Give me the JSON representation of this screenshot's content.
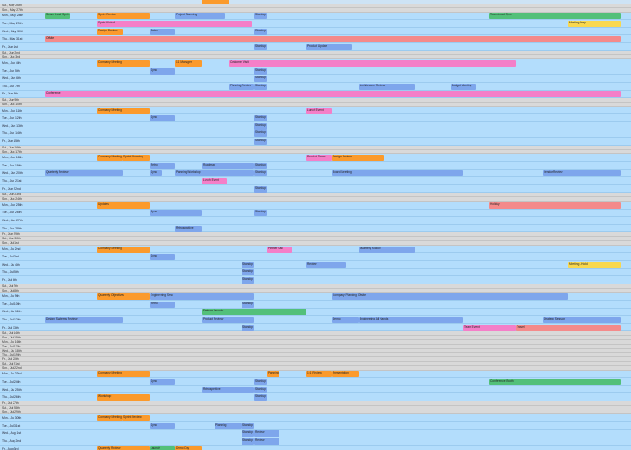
{
  "days": [
    {
      "label": "Sat., May 26th",
      "grey": true
    },
    {
      "label": "Sun., May 27th",
      "grey": true
    },
    {
      "label": "Mon., May 28th",
      "grey": false
    },
    {
      "label": "Tue., May 29th",
      "grey": false
    },
    {
      "label": "Wed., May 30th",
      "grey": false
    },
    {
      "label": "Thu., May 31st",
      "grey": false
    },
    {
      "label": "Fri., Jun 1st",
      "grey": false
    },
    {
      "label": "Sat., Jun 2nd",
      "grey": true
    },
    {
      "label": "Sun., Jun 3rd",
      "grey": true
    },
    {
      "label": "Mon., Jun 4th",
      "grey": false
    },
    {
      "label": "Tue., Jun 5th",
      "grey": false
    },
    {
      "label": "Wed., Jun 6th",
      "grey": false
    },
    {
      "label": "Thu., Jun 7th",
      "grey": false
    },
    {
      "label": "Fri., Jun 8th",
      "grey": false
    },
    {
      "label": "Sat., Jun 9th",
      "grey": true
    },
    {
      "label": "Sun., Jun 10th",
      "grey": true
    },
    {
      "label": "Mon., Jun 11th",
      "grey": false
    },
    {
      "label": "Tue., Jun 12th",
      "grey": false
    },
    {
      "label": "Wed., Jun 13th",
      "grey": false
    },
    {
      "label": "Thu., Jun 14th",
      "grey": false
    },
    {
      "label": "Fri., Jun 15th",
      "grey": false
    },
    {
      "label": "Sat., Jun 16th",
      "grey": true
    },
    {
      "label": "Sun., Jun 17th",
      "grey": true
    },
    {
      "label": "Mon., Jun 18th",
      "grey": false
    },
    {
      "label": "Tue., Jun 19th",
      "grey": false
    },
    {
      "label": "Wed., Jun 20th",
      "grey": false
    },
    {
      "label": "Thu., Jun 21st",
      "grey": false
    },
    {
      "label": "Fri., Jun 22nd",
      "grey": false
    },
    {
      "label": "Sat., Jun 23rd",
      "grey": true
    },
    {
      "label": "Sun., Jun 24th",
      "grey": true
    },
    {
      "label": "Mon., Jun 25th",
      "grey": false
    },
    {
      "label": "Tue., Jun 26th",
      "grey": false
    },
    {
      "label": "Wed., Jun 27th",
      "grey": false
    },
    {
      "label": "Thu., Jun 28th",
      "grey": false
    },
    {
      "label": "Fri., Jun 29th",
      "grey": true
    },
    {
      "label": "Sat., Jun 30th",
      "grey": true
    },
    {
      "label": "Sun., Jul 1st",
      "grey": true
    },
    {
      "label": "Mon., Jul 2nd",
      "grey": false
    },
    {
      "label": "Tue., Jul 3rd",
      "grey": false
    },
    {
      "label": "Wed., Jul 4th",
      "grey": false
    },
    {
      "label": "Thu., Jul 5th",
      "grey": false
    },
    {
      "label": "Fri., Jul 6th",
      "grey": false
    },
    {
      "label": "Sat., Jul 7th",
      "grey": true
    },
    {
      "label": "Sun., Jul 8th",
      "grey": true
    },
    {
      "label": "Mon., Jul 9th",
      "grey": false
    },
    {
      "label": "Tue., Jul 10th",
      "grey": false
    },
    {
      "label": "Wed., Jul 11th",
      "grey": false
    },
    {
      "label": "Thu., Jul 12th",
      "grey": false
    },
    {
      "label": "Fri., Jul 13th",
      "grey": false
    },
    {
      "label": "Sat., Jul 14th",
      "grey": true
    },
    {
      "label": "Sun., Jul 15th",
      "grey": true
    },
    {
      "label": "Mon., Jul 16th",
      "grey": true
    },
    {
      "label": "Tue., Jul 17th",
      "grey": true
    },
    {
      "label": "Wed., Jul 18th",
      "grey": true
    },
    {
      "label": "Thu., Jul 19th",
      "grey": true
    },
    {
      "label": "Fri., Jul 20th",
      "grey": true
    },
    {
      "label": "Sat., Jul 21st",
      "grey": true
    },
    {
      "label": "Sun., Jul 22nd",
      "grey": true
    },
    {
      "label": "Mon., Jul 23rd",
      "grey": false
    },
    {
      "label": "Tue., Jul 24th",
      "grey": false
    },
    {
      "label": "Wed., Jul 25th",
      "grey": false
    },
    {
      "label": "Thu., Jul 26th",
      "grey": false
    },
    {
      "label": "Fri., Jul 27th",
      "grey": true
    },
    {
      "label": "Sat., Jul 28th",
      "grey": true
    },
    {
      "label": "Sun., Jul 29th",
      "grey": true
    },
    {
      "label": "Mon., Jul 30th",
      "grey": false
    },
    {
      "label": "Tue., Jul 31st",
      "grey": false
    },
    {
      "label": "Wed., Aug 1st",
      "grey": false
    },
    {
      "label": "Thu., Aug 2nd",
      "grey": false
    },
    {
      "label": "Fri., Aug 3rd",
      "grey": false
    }
  ],
  "events": [
    {
      "day": 2,
      "c": "green",
      "x1": 50,
      "x2": 78,
      "text": "Scrum Lead Sprint"
    },
    {
      "day": 2,
      "c": "orange",
      "x1": 108,
      "x2": 166,
      "text": "Sprint Review"
    },
    {
      "day": 2,
      "c": "blue",
      "x1": 194,
      "x2": 250,
      "text": "Project Planning"
    },
    {
      "day": 2,
      "c": "blue",
      "x1": 282,
      "x2": 296,
      "text": "Standup"
    },
    {
      "day": 2,
      "c": "green",
      "x1": 543,
      "x2": 689,
      "text": "Team Lead Sync"
    },
    {
      "day": 3,
      "c": "pink",
      "x1": 108,
      "x2": 280,
      "text": "Sprint Kickoff"
    },
    {
      "day": 3,
      "c": "yellow",
      "x1": 630,
      "x2": 689,
      "text": "Meeting Prep"
    },
    {
      "day": 4,
      "c": "orange",
      "x1": 108,
      "x2": 136,
      "text": "Design Review"
    },
    {
      "day": 4,
      "c": "blue",
      "x1": 166,
      "x2": 194,
      "text": "Retro"
    },
    {
      "day": 4,
      "c": "blue",
      "x1": 282,
      "x2": 296,
      "text": "Standup"
    },
    {
      "day": 5,
      "c": "salmon",
      "x1": 50,
      "x2": 689,
      "text": "Offsite"
    },
    {
      "day": 6,
      "c": "blue",
      "x1": 282,
      "x2": 296,
      "text": "Standup"
    },
    {
      "day": 6,
      "c": "blue",
      "x1": 340,
      "x2": 390,
      "text": "Product Update"
    },
    {
      "day": 9,
      "c": "orange",
      "x1": 108,
      "x2": 166,
      "text": "Company Meeting"
    },
    {
      "day": 9,
      "c": "orange",
      "x1": 194,
      "x2": 224,
      "text": "1:1 Manager"
    },
    {
      "day": 9,
      "c": "pink",
      "x1": 254,
      "x2": 572,
      "text": "Customer Visit"
    },
    {
      "day": 10,
      "c": "blue",
      "x1": 166,
      "x2": 194,
      "text": "Sync"
    },
    {
      "day": 10,
      "c": "blue",
      "x1": 282,
      "x2": 296,
      "text": "Standup"
    },
    {
      "day": 11,
      "c": "blue",
      "x1": 282,
      "x2": 296,
      "text": "Standup"
    },
    {
      "day": 12,
      "c": "blue",
      "x1": 254,
      "x2": 282,
      "text": "Planning Review"
    },
    {
      "day": 12,
      "c": "blue",
      "x1": 282,
      "x2": 296,
      "text": "Standup"
    },
    {
      "day": 12,
      "c": "blue",
      "x1": 398,
      "x2": 460,
      "text": "Architecture Review"
    },
    {
      "day": 12,
      "c": "blue",
      "x1": 500,
      "x2": 528,
      "text": "Budget Meeting"
    },
    {
      "day": 13,
      "c": "pink",
      "x1": 50,
      "x2": 689,
      "text": "Conference"
    },
    {
      "day": 16,
      "c": "orange",
      "x1": 108,
      "x2": 166,
      "text": "Company Meeting"
    },
    {
      "day": 16,
      "c": "pink",
      "x1": 340,
      "x2": 368,
      "text": "Lunch Event"
    },
    {
      "day": 17,
      "c": "blue",
      "x1": 166,
      "x2": 194,
      "text": "Sync"
    },
    {
      "day": 17,
      "c": "blue",
      "x1": 282,
      "x2": 296,
      "text": "Standup"
    },
    {
      "day": 18,
      "c": "blue",
      "x1": 282,
      "x2": 296,
      "text": "Standup"
    },
    {
      "day": 19,
      "c": "blue",
      "x1": 282,
      "x2": 296,
      "text": "Standup"
    },
    {
      "day": 20,
      "c": "blue",
      "x1": 282,
      "x2": 296,
      "text": "Standup"
    },
    {
      "day": 23,
      "c": "orange",
      "x1": 108,
      "x2": 136,
      "text": "Company Meeting"
    },
    {
      "day": 23,
      "c": "orange",
      "x1": 136,
      "x2": 166,
      "text": "Sprint Planning"
    },
    {
      "day": 23,
      "c": "pink",
      "x1": 340,
      "x2": 368,
      "text": "Product Demo"
    },
    {
      "day": 23,
      "c": "orange",
      "x1": 368,
      "x2": 426,
      "text": "Design Review"
    },
    {
      "day": 24,
      "c": "blue",
      "x1": 166,
      "x2": 194,
      "text": "Retro"
    },
    {
      "day": 24,
      "c": "blue",
      "x1": 224,
      "x2": 282,
      "text": "Roadmap"
    },
    {
      "day": 24,
      "c": "blue",
      "x1": 282,
      "x2": 296,
      "text": "Standup"
    },
    {
      "day": 25,
      "c": "blue",
      "x1": 50,
      "x2": 136,
      "text": "Quarterly Review"
    },
    {
      "day": 25,
      "c": "blue",
      "x1": 166,
      "x2": 180,
      "text": "Sync"
    },
    {
      "day": 25,
      "c": "blue",
      "x1": 194,
      "x2": 282,
      "text": "Planning Workshop"
    },
    {
      "day": 25,
      "c": "blue",
      "x1": 282,
      "x2": 296,
      "text": "Standup"
    },
    {
      "day": 25,
      "c": "blue",
      "x1": 368,
      "x2": 514,
      "text": "Board Meeting"
    },
    {
      "day": 25,
      "c": "blue",
      "x1": 602,
      "x2": 689,
      "text": "Vendor Review"
    },
    {
      "day": 26,
      "c": "pink",
      "x1": 224,
      "x2": 252,
      "text": "Lunch Event"
    },
    {
      "day": 27,
      "c": "blue",
      "x1": 282,
      "x2": 296,
      "text": "Standup"
    },
    {
      "day": 30,
      "c": "orange",
      "x1": 108,
      "x2": 166,
      "text": "Updates"
    },
    {
      "day": 30,
      "c": "salmon",
      "x1": 543,
      "x2": 689,
      "text": "Holiday"
    },
    {
      "day": 31,
      "c": "blue",
      "x1": 166,
      "x2": 224,
      "text": "Sync"
    },
    {
      "day": 31,
      "c": "blue",
      "x1": 282,
      "x2": 296,
      "text": "Standup"
    },
    {
      "day": 33,
      "c": "blue",
      "x1": 194,
      "x2": 224,
      "text": "Retrospective"
    },
    {
      "day": 37,
      "c": "orange",
      "x1": 108,
      "x2": 166,
      "text": "Company Meeting"
    },
    {
      "day": 37,
      "c": "pink",
      "x1": 296,
      "x2": 324,
      "text": "Partner Call"
    },
    {
      "day": 37,
      "c": "blue",
      "x1": 398,
      "x2": 460,
      "text": "Quarterly Kickoff"
    },
    {
      "day": 38,
      "c": "blue",
      "x1": 166,
      "x2": 194,
      "text": "Sync"
    },
    {
      "day": 39,
      "c": "blue",
      "x1": 268,
      "x2": 282,
      "text": "Standup"
    },
    {
      "day": 39,
      "c": "blue",
      "x1": 340,
      "x2": 384,
      "text": "Review"
    },
    {
      "day": 39,
      "c": "yellow",
      "x1": 630,
      "x2": 689,
      "text": "Meeting - Hold"
    },
    {
      "day": 40,
      "c": "blue",
      "x1": 268,
      "x2": 282,
      "text": "Standup"
    },
    {
      "day": 41,
      "c": "blue",
      "x1": 268,
      "x2": 282,
      "text": "Standup"
    },
    {
      "day": 44,
      "c": "orange",
      "x1": 108,
      "x2": 166,
      "text": "Quarterly Objectives"
    },
    {
      "day": 44,
      "c": "blue",
      "x1": 166,
      "x2": 282,
      "text": "Engineering Sync"
    },
    {
      "day": 44,
      "c": "blue",
      "x1": 368,
      "x2": 630,
      "text": "Company Planning Offsite"
    },
    {
      "day": 45,
      "c": "blue",
      "x1": 166,
      "x2": 194,
      "text": "Retro"
    },
    {
      "day": 45,
      "c": "blue",
      "x1": 268,
      "x2": 282,
      "text": "Standup"
    },
    {
      "day": 46,
      "c": "green",
      "x1": 224,
      "x2": 340,
      "text": "Feature Launch"
    },
    {
      "day": 47,
      "c": "blue",
      "x1": 50,
      "x2": 136,
      "text": "Design Systems Review"
    },
    {
      "day": 47,
      "c": "blue",
      "x1": 224,
      "x2": 282,
      "text": "Product Review"
    },
    {
      "day": 47,
      "c": "blue",
      "x1": 368,
      "x2": 398,
      "text": "Demo"
    },
    {
      "day": 47,
      "c": "blue",
      "x1": 398,
      "x2": 514,
      "text": "Engineering All Hands"
    },
    {
      "day": 47,
      "c": "blue",
      "x1": 602,
      "x2": 689,
      "text": "Strategy Session"
    },
    {
      "day": 48,
      "c": "blue",
      "x1": 268,
      "x2": 282,
      "text": "Standup"
    },
    {
      "day": 48,
      "c": "pink",
      "x1": 514,
      "x2": 572,
      "text": "Team Event"
    },
    {
      "day": 48,
      "c": "salmon",
      "x1": 572,
      "x2": 689,
      "text": "Travel"
    },
    {
      "day": 58,
      "c": "orange",
      "x1": 108,
      "x2": 166,
      "text": "Company Meeting"
    },
    {
      "day": 58,
      "c": "orange",
      "x1": 296,
      "x2": 310,
      "text": "Planning"
    },
    {
      "day": 58,
      "c": "orange",
      "x1": 340,
      "x2": 368,
      "text": "1:1 Review"
    },
    {
      "day": 58,
      "c": "orange",
      "x1": 368,
      "x2": 398,
      "text": "Presentation"
    },
    {
      "day": 59,
      "c": "blue",
      "x1": 166,
      "x2": 194,
      "text": "Sync"
    },
    {
      "day": 59,
      "c": "blue",
      "x1": 282,
      "x2": 296,
      "text": "Standup"
    },
    {
      "day": 59,
      "c": "green",
      "x1": 543,
      "x2": 689,
      "text": "Conference Booth"
    },
    {
      "day": 60,
      "c": "blue",
      "x1": 224,
      "x2": 282,
      "text": "Retrospective"
    },
    {
      "day": 60,
      "c": "blue",
      "x1": 282,
      "x2": 296,
      "text": "Standup"
    },
    {
      "day": 61,
      "c": "orange",
      "x1": 108,
      "x2": 166,
      "text": "Workshop"
    },
    {
      "day": 61,
      "c": "blue",
      "x1": 282,
      "x2": 296,
      "text": "Standup"
    },
    {
      "day": 65,
      "c": "orange",
      "x1": 108,
      "x2": 136,
      "text": "Company Meeting"
    },
    {
      "day": 65,
      "c": "orange",
      "x1": 136,
      "x2": 166,
      "text": "Sprint Review"
    },
    {
      "day": 66,
      "c": "blue",
      "x1": 166,
      "x2": 194,
      "text": "Sync"
    },
    {
      "day": 66,
      "c": "blue",
      "x1": 238,
      "x2": 268,
      "text": "Planning"
    },
    {
      "day": 66,
      "c": "blue",
      "x1": 268,
      "x2": 282,
      "text": "Standup"
    },
    {
      "day": 67,
      "c": "blue",
      "x1": 268,
      "x2": 282,
      "text": "Standup"
    },
    {
      "day": 67,
      "c": "blue",
      "x1": 282,
      "x2": 310,
      "text": "Review"
    },
    {
      "day": 68,
      "c": "blue",
      "x1": 268,
      "x2": 282,
      "text": "Standup"
    },
    {
      "day": 68,
      "c": "blue",
      "x1": 282,
      "x2": 310,
      "text": "Review"
    },
    {
      "day": 69,
      "c": "orange",
      "x1": 108,
      "x2": 166,
      "text": "Quarterly Review"
    },
    {
      "day": 69,
      "c": "green",
      "x1": 166,
      "x2": 194,
      "text": "Launch"
    },
    {
      "day": 69,
      "c": "orange",
      "x1": 194,
      "x2": 224,
      "text": "Demo Day"
    }
  ]
}
